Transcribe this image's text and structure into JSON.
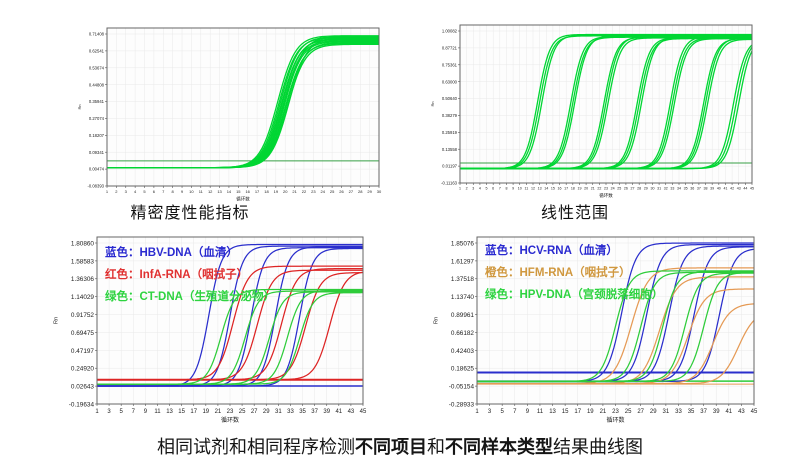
{
  "caption": {
    "part1": "相同试剂和相同程序检测",
    "part2": "不同项目",
    "part3": "和",
    "part4": "不同样本类型",
    "part5": "结果曲线图"
  },
  "chart_data": {
    "charts": [
      {
        "id": "precision",
        "type": "line",
        "subtitle": "精密度性能指标",
        "xlabel": "循环数",
        "ylabel": "Rn",
        "xlim": [
          1,
          30
        ],
        "x_tick_step": 1,
        "y_ticks": [
          "0.71408",
          "0.62541",
          "0.53674",
          "0.44808",
          "0.35941",
          "0.27074",
          "0.18207",
          "0.09341",
          "0.00474",
          "-0.08393"
        ],
        "grid": true,
        "threshold_lines": [
          {
            "color": "#379f45",
            "y": 0.048,
            "width": 1
          }
        ],
        "series": [
          {
            "name": "green-replicates",
            "color": "#00d633",
            "k": 1.05,
            "baseline": 0.012,
            "curves": [
              {
                "mid": 19.2,
                "plateau": 0.705
              },
              {
                "mid": 19.35,
                "plateau": 0.695
              },
              {
                "mid": 19.5,
                "plateau": 0.7
              },
              {
                "mid": 19.6,
                "plateau": 0.685
              },
              {
                "mid": 19.7,
                "plateau": 0.69
              },
              {
                "mid": 19.8,
                "plateau": 0.68
              },
              {
                "mid": 19.9,
                "plateau": 0.675
              },
              {
                "mid": 20.0,
                "plateau": 0.7
              },
              {
                "mid": 20.05,
                "plateau": 0.665
              },
              {
                "mid": 20.15,
                "plateau": 0.67
              },
              {
                "mid": 20.25,
                "plateau": 0.66
              },
              {
                "mid": 20.4,
                "plateau": 0.695
              }
            ]
          }
        ],
        "legend": null
      },
      {
        "id": "linear-range",
        "type": "line",
        "subtitle": "线性范围",
        "xlabel": "循环数",
        "ylabel": "Rn",
        "xlim": [
          1,
          45
        ],
        "x_tick_step": 1,
        "y_ticks": [
          "1.00082",
          "0.87721",
          "0.75361",
          "0.63000",
          "0.50640",
          "0.38279",
          "0.25919",
          "0.13558",
          "0.01197",
          "-0.11163"
        ],
        "grid": true,
        "threshold_lines": [
          {
            "color": "#379f45",
            "y": 0.035,
            "width": 1
          }
        ],
        "series": [
          {
            "name": "green-dilution-series",
            "color": "#00d633",
            "k": 1.1,
            "baseline": -0.006,
            "curves": [
              {
                "mid": 12.7,
                "plateau": 0.975
              },
              {
                "mid": 13.0,
                "plateau": 0.965
              },
              {
                "mid": 13.35,
                "plateau": 0.97
              },
              {
                "mid": 17.7,
                "plateau": 0.96
              },
              {
                "mid": 18.0,
                "plateau": 0.955
              },
              {
                "mid": 18.3,
                "plateau": 0.965
              },
              {
                "mid": 22.7,
                "plateau": 0.955
              },
              {
                "mid": 23.0,
                "plateau": 0.96
              },
              {
                "mid": 23.3,
                "plateau": 0.95
              },
              {
                "mid": 27.7,
                "plateau": 0.95
              },
              {
                "mid": 28.0,
                "plateau": 0.945
              },
              {
                "mid": 28.35,
                "plateau": 0.955
              },
              {
                "mid": 32.7,
                "plateau": 0.96
              },
              {
                "mid": 33.0,
                "plateau": 0.95
              },
              {
                "mid": 33.3,
                "plateau": 0.945
              },
              {
                "mid": 37.7,
                "plateau": 0.945
              },
              {
                "mid": 38.0,
                "plateau": 0.95
              },
              {
                "mid": 38.3,
                "plateau": 0.94
              },
              {
                "mid": 42.2,
                "plateau": 0.94
              },
              {
                "mid": 42.6,
                "plateau": 0.945
              },
              {
                "mid": 43.0,
                "plateau": 0.95
              }
            ]
          }
        ],
        "legend": null
      },
      {
        "id": "same-reagent-left",
        "type": "line",
        "subtitle": "",
        "xlabel": "循环数",
        "ylabel": "Rn",
        "xlim": [
          1,
          45
        ],
        "x_tick_step": 2,
        "y_ticks": [
          "1.80860",
          "1.58583",
          "1.36306",
          "1.14029",
          "0.91752",
          "0.69475",
          "0.47197",
          "0.24920",
          "0.02643",
          "-0.19634"
        ],
        "grid": true,
        "threshold_lines": [
          {
            "color": "#dd2424",
            "y": 0.105,
            "width": 2
          },
          {
            "color": "#2a2ecc",
            "y": 0.028,
            "width": 1.5
          }
        ],
        "series": [
          {
            "name": "HBV-DNA",
            "color": "#2a2ecc",
            "k": 0.95,
            "baseline": 0.028,
            "curves": [
              {
                "mid": 19.5,
                "plateau": 1.79
              },
              {
                "mid": 23.0,
                "plateau": 1.77
              },
              {
                "mid": 26.5,
                "plateau": 1.75
              },
              {
                "mid": 30.5,
                "plateau": 1.76
              },
              {
                "mid": 34.5,
                "plateau": 1.74
              }
            ]
          },
          {
            "name": "InfA-RNA",
            "color": "#dd2424",
            "k": 0.82,
            "baseline": 0.105,
            "curves": [
              {
                "mid": 23.5,
                "plateau": 1.52
              },
              {
                "mid": 27.5,
                "plateau": 1.47
              },
              {
                "mid": 31.5,
                "plateau": 1.49
              },
              {
                "mid": 35.5,
                "plateau": 1.44
              },
              {
                "mid": 39.5,
                "plateau": 1.46
              }
            ]
          },
          {
            "name": "CT-DNA",
            "color": "#2ecc3a",
            "k": 0.9,
            "baseline": 0.05,
            "curves": [
              {
                "mid": 21.5,
                "plateau": 1.23
              },
              {
                "mid": 25.5,
                "plateau": 1.21
              },
              {
                "mid": 29.5,
                "plateau": 1.2
              },
              {
                "mid": 32.5,
                "plateau": 1.22
              },
              {
                "mid": 34.5,
                "plateau": 1.19
              }
            ]
          }
        ],
        "legend": [
          {
            "color": "#2a2ad0",
            "text": "蓝色：HBV-DNA（血清）"
          },
          {
            "color": "#e03030",
            "text": "红色：InfA-RNA（咽拭子）"
          },
          {
            "color": "#2ed340",
            "text": "绿色：CT-DNA（生殖道分泌物）"
          }
        ]
      },
      {
        "id": "same-reagent-right",
        "type": "line",
        "subtitle": "",
        "xlabel": "循环数",
        "ylabel": "Rn",
        "xlim": [
          1,
          45
        ],
        "x_tick_step": 2,
        "y_ticks": [
          "1.85076",
          "1.61297",
          "1.37518",
          "1.13740",
          "0.89961",
          "0.66182",
          "0.42403",
          "0.18625",
          "-0.05154",
          "-0.28933"
        ],
        "grid": true,
        "threshold_lines": [
          {
            "color": "#2a2ecc",
            "y": 0.13,
            "width": 2
          },
          {
            "color": "#2ecc3a",
            "y": 0.015,
            "width": 1.5
          },
          {
            "color": "#e59a55",
            "y": -0.025,
            "width": 1
          }
        ],
        "series": [
          {
            "name": "HCV-RNA",
            "color": "#2a2ecc",
            "k": 0.9,
            "baseline": 0.01,
            "curves": [
              {
                "mid": 24.0,
                "plateau": 1.85
              },
              {
                "mid": 28.0,
                "plateau": 1.83
              },
              {
                "mid": 31.5,
                "plateau": 1.81
              },
              {
                "mid": 35.5,
                "plateau": 1.8
              },
              {
                "mid": 39.5,
                "plateau": 1.78
              }
            ]
          },
          {
            "name": "HFM-RNA",
            "color": "#e59a55",
            "k": 0.75,
            "baseline": -0.02,
            "curves": [
              {
                "mid": 25.5,
                "plateau": 1.52
              },
              {
                "mid": 30.0,
                "plateau": 1.4
              },
              {
                "mid": 34.5,
                "plateau": 1.24
              },
              {
                "mid": 38.5,
                "plateau": 1.05
              },
              {
                "mid": 42.5,
                "plateau": 0.95
              }
            ]
          },
          {
            "name": "HPV-DNA",
            "color": "#2ecc3a",
            "k": 0.9,
            "baseline": 0.01,
            "curves": [
              {
                "mid": 23.0,
                "plateau": 1.48
              },
              {
                "mid": 27.0,
                "plateau": 1.46
              },
              {
                "mid": 30.5,
                "plateau": 1.47
              },
              {
                "mid": 34.0,
                "plateau": 1.45
              },
              {
                "mid": 37.0,
                "plateau": 1.46
              }
            ]
          }
        ],
        "legend": [
          {
            "color": "#2a2ad0",
            "text": "蓝色：HCV-RNA（血清）"
          },
          {
            "color": "#d0983f",
            "text": "橙色：HFM-RNA（咽拭子）"
          },
          {
            "color": "#2ed340",
            "text": "绿色：HPV-DNA（宫颈脱落细胞）"
          }
        ]
      }
    ]
  }
}
